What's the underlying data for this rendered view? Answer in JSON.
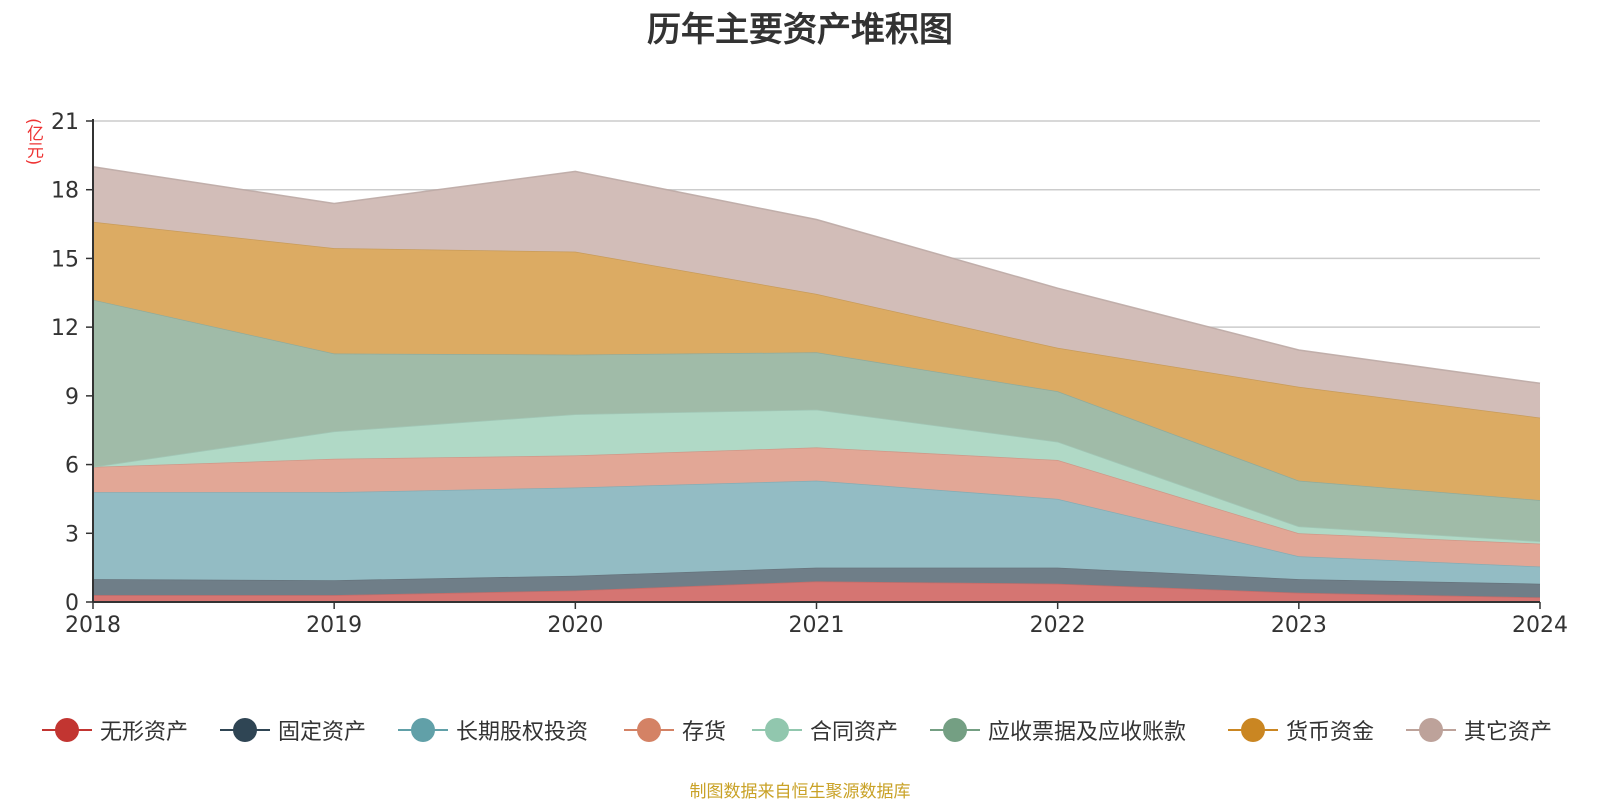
{
  "title": "历年主要资产堆积图",
  "unit": "(亿元)",
  "source_note": "制图数据来自恒生聚源数据库",
  "colors": {
    "background": "#ffffff",
    "title": "#333333",
    "unit": "#ee3333",
    "gridline": "#cccccc",
    "axis": "#333333",
    "source_note": "#c9a227"
  },
  "chart_data": {
    "type": "area",
    "stacked": true,
    "title": "历年主要资产堆积图",
    "ylabel": "(亿元)",
    "x": [
      "2018",
      "2019",
      "2020",
      "2021",
      "2022",
      "2023",
      "2024"
    ],
    "ylim": [
      0,
      21
    ],
    "yticks": [
      0,
      3,
      6,
      9,
      12,
      15,
      18,
      21
    ],
    "grid": true,
    "legend_position": "bottom",
    "series": [
      {
        "name": "无形资产",
        "color": "#c23531",
        "area_color": "#d57572",
        "values": [
          0.3,
          0.3,
          0.5,
          0.9,
          0.8,
          0.4,
          0.2
        ]
      },
      {
        "name": "固定资产",
        "color": "#2f4554",
        "area_color": "#6f7e88",
        "values": [
          0.7,
          0.65,
          0.65,
          0.6,
          0.7,
          0.6,
          0.6
        ]
      },
      {
        "name": "长期股权投资",
        "color": "#61a0a8",
        "area_color": "#93bcc4",
        "values": [
          3.8,
          3.85,
          3.85,
          3.8,
          3.0,
          1.0,
          0.75
        ]
      },
      {
        "name": "存货",
        "color": "#d48265",
        "area_color": "#e2a796",
        "values": [
          1.1,
          1.45,
          1.4,
          1.45,
          1.7,
          1.0,
          1.0
        ]
      },
      {
        "name": "合同资产",
        "color": "#91c7ae",
        "area_color": "#b0d9c6",
        "values": [
          0.0,
          1.2,
          1.8,
          1.65,
          0.8,
          0.3,
          0.1
        ]
      },
      {
        "name": "应收票据及应收账款",
        "color": "#749f83",
        "area_color": "#a0bba8",
        "values": [
          7.3,
          3.4,
          2.6,
          2.5,
          2.2,
          2.0,
          1.8
        ]
      },
      {
        "name": "货币资金",
        "color": "#ca8622",
        "area_color": "#dcab63",
        "values": [
          3.4,
          4.6,
          4.5,
          2.55,
          1.9,
          4.1,
          3.6
        ]
      },
      {
        "name": "其它资产",
        "color": "#bda29a",
        "area_color": "#d2bdb8",
        "values": [
          2.4,
          1.95,
          3.5,
          3.25,
          2.6,
          1.6,
          1.5
        ]
      }
    ]
  }
}
